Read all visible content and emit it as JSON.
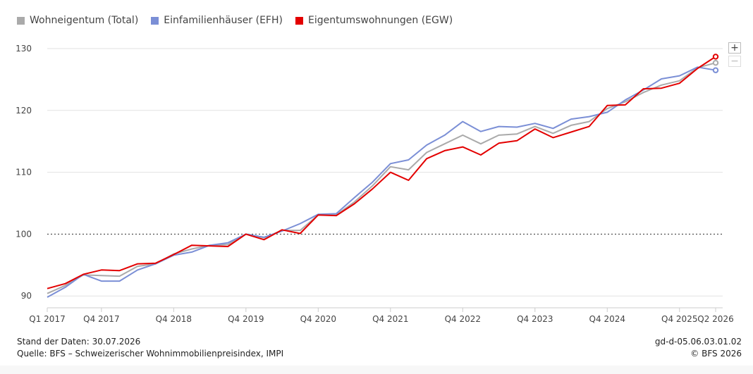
{
  "legend": [
    {
      "label": "Wohneigentum (Total)",
      "color": "#aaaaaa"
    },
    {
      "label": "Einfamilienhäuser (EFH)",
      "color": "#7b8fd6"
    },
    {
      "label": "Eigentumswohnungen (EGW)",
      "color": "#e30000"
    }
  ],
  "zoom": {
    "in_label": "+",
    "out_label": "−"
  },
  "footer": {
    "stand": "Stand der Daten: 30.07.2026",
    "quelle": "Quelle: BFS – Schweizerischer Wohnimmobilienpreisindex, IMPI",
    "code": "gd-d-05.06.03.01.02",
    "copyright": "© BFS 2026"
  },
  "chart_data": {
    "type": "line",
    "title": "",
    "xlabel": "",
    "ylabel": "",
    "ylim": [
      89,
      130
    ],
    "yticks": [
      90,
      100,
      110,
      120,
      130
    ],
    "reference_line": 100,
    "grid": true,
    "x": [
      "Q1 2017",
      "Q2 2017",
      "Q3 2017",
      "Q4 2017",
      "Q1 2018",
      "Q2 2018",
      "Q3 2018",
      "Q4 2018",
      "Q1 2019",
      "Q2 2019",
      "Q3 2019",
      "Q4 2019",
      "Q1 2020",
      "Q2 2020",
      "Q3 2020",
      "Q4 2020",
      "Q1 2021",
      "Q2 2021",
      "Q3 2021",
      "Q4 2021",
      "Q1 2022",
      "Q2 2022",
      "Q3 2022",
      "Q4 2022",
      "Q1 2023",
      "Q2 2023",
      "Q3 2023",
      "Q4 2023",
      "Q1 2024",
      "Q2 2024",
      "Q3 2024",
      "Q4 2024",
      "Q1 2025",
      "Q2 2025",
      "Q3 2025",
      "Q4 2025",
      "Q1 2026",
      "Q2 2026"
    ],
    "xtick_labels": [
      "Q1 2017",
      "Q4 2017",
      "Q4 2018",
      "Q4 2019",
      "Q4 2020",
      "Q4 2021",
      "Q4 2022",
      "Q4 2023",
      "Q4 2024",
      "Q4 2025",
      "Q2 2026"
    ],
    "series": [
      {
        "name": "Wohneigentum (Total)",
        "color": "#aaaaaa",
        "values": [
          90.4,
          91.7,
          93.4,
          93.3,
          93.2,
          94.8,
          95.2,
          96.8,
          97.6,
          98.2,
          98.3,
          100.0,
          99.4,
          100.6,
          100.6,
          103.1,
          103.1,
          105.2,
          107.8,
          110.9,
          110.4,
          113.2,
          114.6,
          116.0,
          114.6,
          116.0,
          116.2,
          117.4,
          116.3,
          117.6,
          118.2,
          120.3,
          121.4,
          122.9,
          124.1,
          124.8,
          126.9,
          127.7
        ]
      },
      {
        "name": "Einfamilienhäuser (EFH)",
        "color": "#7b8fd6",
        "values": [
          89.8,
          91.4,
          93.5,
          92.4,
          92.4,
          94.2,
          95.2,
          96.6,
          97.1,
          98.2,
          98.6,
          100.0,
          99.5,
          100.5,
          101.7,
          103.2,
          103.3,
          105.9,
          108.4,
          111.4,
          112.0,
          114.4,
          116.0,
          118.2,
          116.6,
          117.4,
          117.3,
          117.9,
          117.1,
          118.6,
          119.0,
          119.7,
          121.7,
          123.3,
          125.1,
          125.6,
          127.0,
          126.5
        ]
      },
      {
        "name": "Eigentumswohnungen (EGW)",
        "color": "#e30000",
        "values": [
          91.2,
          92.0,
          93.5,
          94.2,
          94.1,
          95.2,
          95.3,
          96.7,
          98.2,
          98.1,
          98.0,
          100.0,
          99.1,
          100.7,
          100.1,
          103.1,
          103.0,
          104.9,
          107.3,
          110.0,
          108.7,
          112.2,
          113.5,
          114.1,
          112.8,
          114.7,
          115.1,
          117.0,
          115.6,
          116.5,
          117.4,
          120.8,
          120.9,
          123.5,
          123.6,
          124.4,
          126.8,
          128.7
        ]
      }
    ]
  }
}
